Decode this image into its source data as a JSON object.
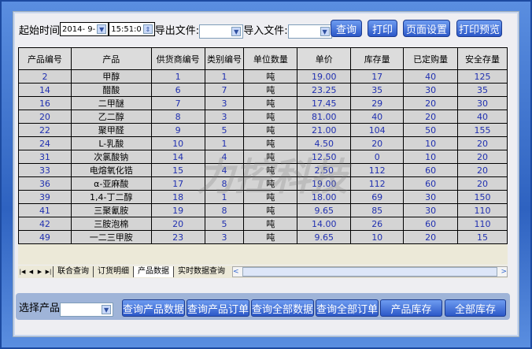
{
  "toolbar": {
    "start_label": "起始时间",
    "date": "2014- 9-",
    "time": "15:51:0",
    "export_label": "导出文件:",
    "import_label": "导入文件:",
    "query": "查询",
    "print": "打印",
    "page_setup": "页面设置",
    "print_preview": "打印预览"
  },
  "table": {
    "headers": [
      "产品编号",
      "产品",
      "供货商编号",
      "类别编号",
      "单位数量",
      "单价",
      "库存量",
      "已定购量",
      "安全存量"
    ],
    "rows": [
      [
        "2",
        "甲醇",
        "1",
        "1",
        "吨",
        "19.00",
        "17",
        "40",
        "125"
      ],
      [
        "14",
        "醋酸",
        "6",
        "7",
        "吨",
        "23.25",
        "35",
        "30",
        "35"
      ],
      [
        "16",
        "二甲醚",
        "7",
        "3",
        "吨",
        "17.45",
        "29",
        "20",
        "30"
      ],
      [
        "20",
        "乙二醇",
        "8",
        "3",
        "吨",
        "81.00",
        "40",
        "20",
        "40"
      ],
      [
        "22",
        "聚甲醛",
        "9",
        "5",
        "吨",
        "21.00",
        "104",
        "50",
        "155"
      ],
      [
        "24",
        "L-乳酸",
        "10",
        "1",
        "吨",
        "4.50",
        "20",
        "10",
        "20"
      ],
      [
        "31",
        "次氯酸钠",
        "14",
        "4",
        "吨",
        "12.50",
        "0",
        "10",
        "20"
      ],
      [
        "33",
        "电熔氧化锆",
        "15",
        "4",
        "吨",
        "2.50",
        "112",
        "60",
        "20"
      ],
      [
        "36",
        "α-亚麻酸",
        "17",
        "8",
        "吨",
        "19.00",
        "112",
        "60",
        "20"
      ],
      [
        "39",
        "1,4-丁二醇",
        "18",
        "1",
        "吨",
        "18.00",
        "69",
        "30",
        "150"
      ],
      [
        "41",
        "三聚氰胺",
        "19",
        "8",
        "吨",
        "9.65",
        "85",
        "30",
        "110"
      ],
      [
        "42",
        "三胺泡棉",
        "20",
        "5",
        "吨",
        "14.00",
        "26",
        "60",
        "110"
      ],
      [
        "49",
        "一二三甲胺",
        "23",
        "3",
        "吨",
        "9.65",
        "10",
        "20",
        "15"
      ]
    ]
  },
  "watermark": "力控科技 FORCECON",
  "tabs": [
    "联合查询",
    "订货明细",
    "产品数据",
    "实时数据查询"
  ],
  "bottom": {
    "select_label": "选择产品",
    "buttons": [
      "查询产品数据",
      "查询产品订单",
      "查询全部数据",
      "查询全部订单",
      "产品库存",
      "全部库存"
    ]
  }
}
